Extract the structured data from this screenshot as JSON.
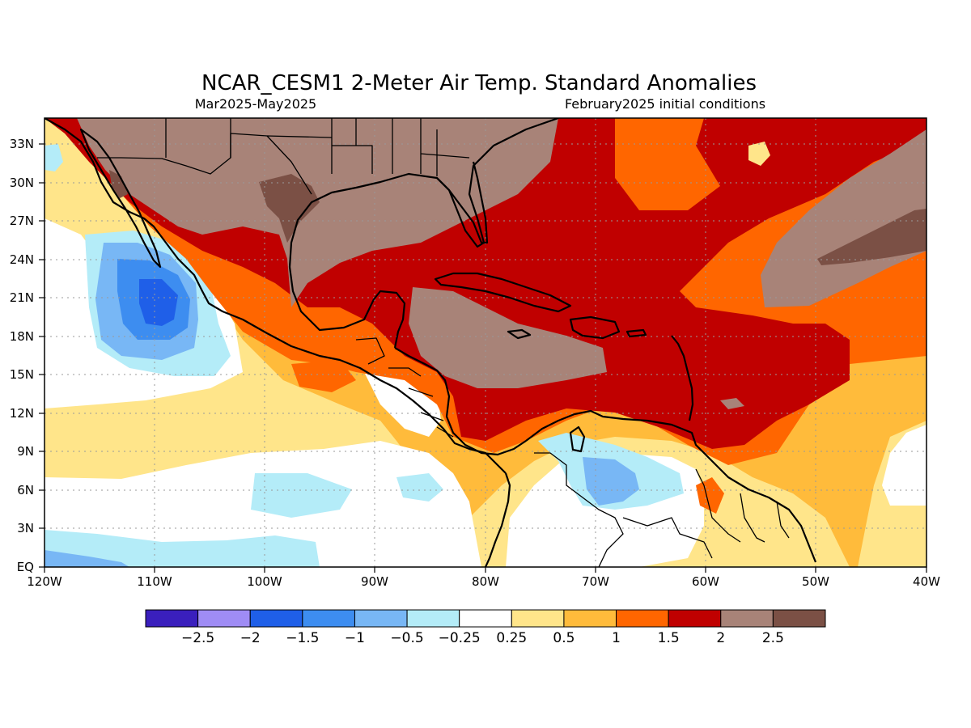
{
  "title": "NCAR_CESM1 2-Meter Air Temp. Standard Anomalies",
  "subtitle_left": "Mar2025-May2025",
  "subtitle_right": "February2025 initial conditions",
  "map": {
    "lon_range": [
      -120,
      -40
    ],
    "lat_range": [
      0,
      35
    ],
    "lon_ticks": [
      "120W",
      "110W",
      "100W",
      "90W",
      "80W",
      "70W",
      "60W",
      "50W",
      "40W"
    ],
    "lat_ticks": [
      "33N",
      "30N",
      "27N",
      "24N",
      "21N",
      "18N",
      "15N",
      "12N",
      "9N",
      "6N",
      "3N",
      "EQ"
    ]
  },
  "colorbar": {
    "colors": [
      "#3a1fbd",
      "#9f8cf5",
      "#1f5fe8",
      "#3d8df0",
      "#78b7f5",
      "#b4ecf8",
      "#ffffff",
      "#ffe58a",
      "#ffbb3b",
      "#ff6600",
      "#c00000",
      "#a88378",
      "#7b5045"
    ],
    "labels": [
      "−2.5",
      "−2",
      "−1.5",
      "−1",
      "−0.5",
      "−0.25",
      "0.25",
      "0.5",
      "1",
      "1.5",
      "2",
      "2.5"
    ]
  }
}
